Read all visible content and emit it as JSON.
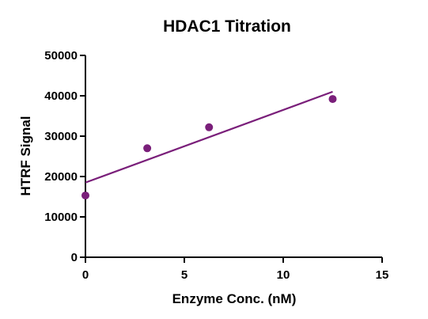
{
  "chart_data": {
    "type": "scatter",
    "title": "HDAC1 Titration",
    "xlabel": "Enzyme Conc. (nM)",
    "ylabel": "HTRF Signal",
    "xlim": [
      0,
      15
    ],
    "ylim": [
      0,
      50000
    ],
    "x_ticks": [
      "0",
      "5",
      "10",
      "15"
    ],
    "y_ticks": [
      "0",
      "10000",
      "20000",
      "30000",
      "40000",
      "50000"
    ],
    "grid": false,
    "legend": "none",
    "colors": {
      "series": "#7a1f7a",
      "axis": "#000000"
    },
    "series": [
      {
        "points": [
          {
            "x": 0,
            "y": 15300
          },
          {
            "x": 3.125,
            "y": 27000
          },
          {
            "x": 6.25,
            "y": 32200
          },
          {
            "x": 12.5,
            "y": 39200
          }
        ]
      }
    ],
    "fit_line": {
      "x": [
        0,
        12.5
      ],
      "y": [
        18500,
        41000
      ]
    }
  }
}
